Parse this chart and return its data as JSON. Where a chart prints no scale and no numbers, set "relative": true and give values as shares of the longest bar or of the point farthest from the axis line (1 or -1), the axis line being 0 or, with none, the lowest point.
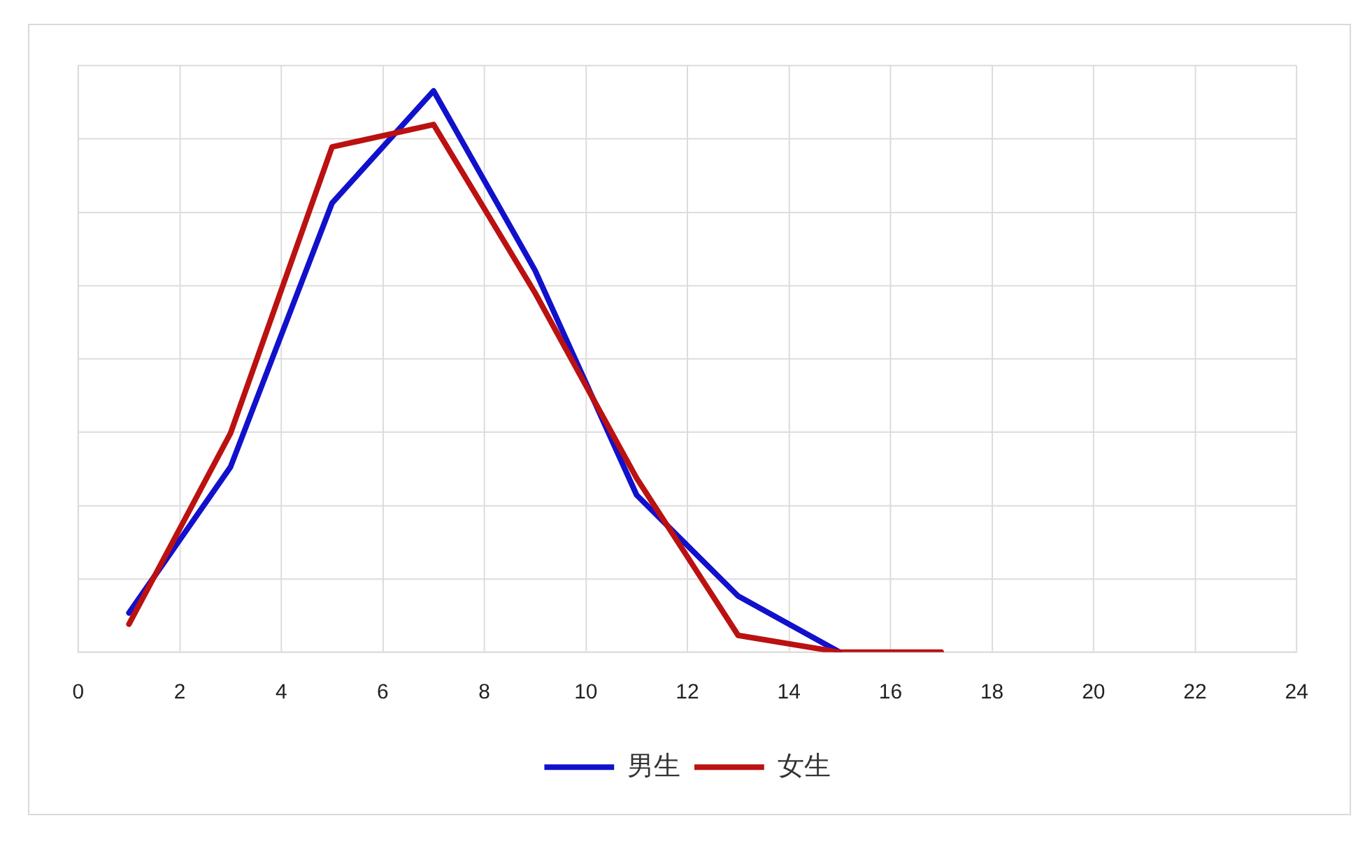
{
  "chart_data": {
    "type": "line",
    "relative": true,
    "xlim": [
      0,
      24
    ],
    "xticks": [
      0,
      2,
      4,
      6,
      8,
      10,
      12,
      14,
      16,
      18,
      20,
      22,
      24
    ],
    "series": [
      {
        "name": "男生",
        "color": "#1111cc",
        "x": [
          1,
          3,
          5,
          7,
          9,
          11,
          13,
          15
        ],
        "values": [
          0.07,
          0.33,
          0.8,
          1,
          0.68,
          0.28,
          0.1,
          0
        ]
      },
      {
        "name": "女生",
        "color": "#bb1111",
        "x": [
          1,
          3,
          5,
          7,
          9,
          11,
          13,
          15,
          17
        ],
        "values": [
          0.05,
          0.39,
          0.9,
          0.94,
          0.64,
          0.31,
          0.03,
          0,
          0
        ]
      }
    ],
    "grid": true,
    "legend": "bottom",
    "line_style": "solid"
  }
}
